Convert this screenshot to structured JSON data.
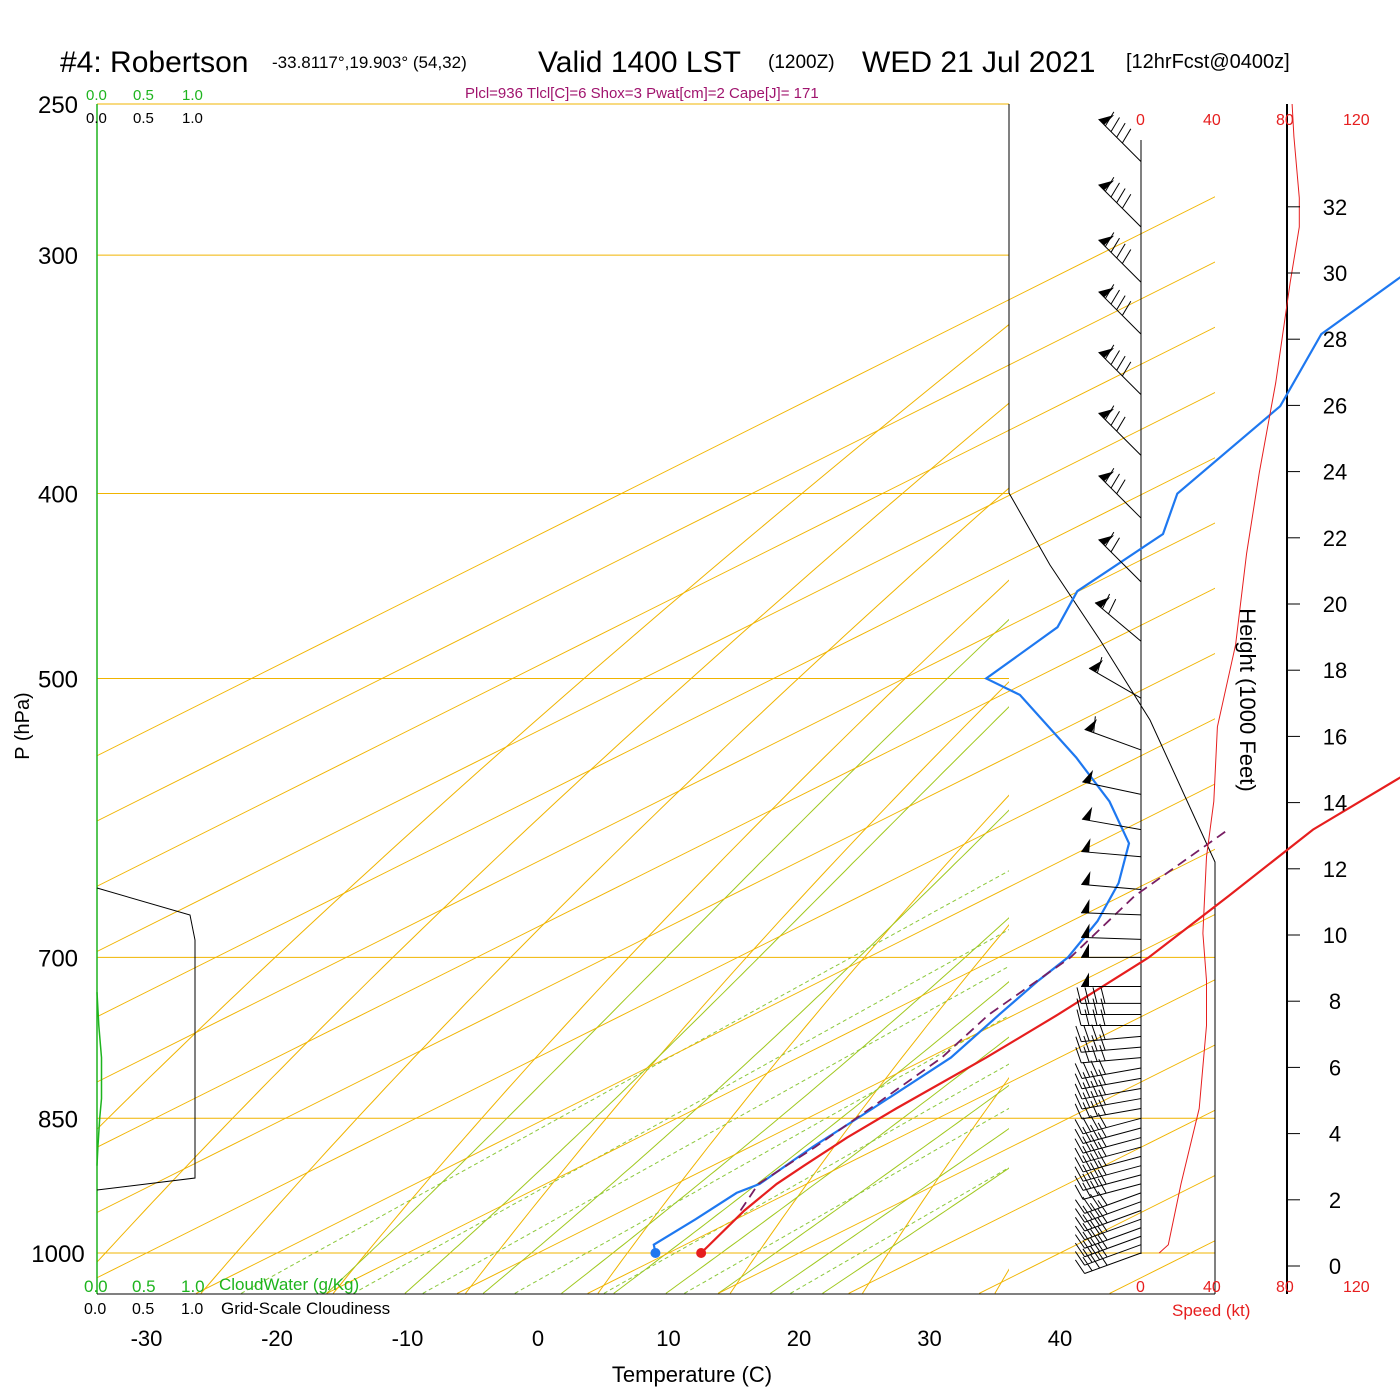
{
  "header": {
    "station": "#4: Robertson",
    "coords": "-33.8117°,19.903° (54,32)",
    "valid": "Valid 1400 LST",
    "zulu": "(1200Z)",
    "date": "WED 21 Jul 2021",
    "forecast": "[12hrFcst@0400z]",
    "indices": "Plcl=936 Tlcl[C]=6 Shox=3 Pwat[cm]=2 Cape[J]= 171"
  },
  "colors": {
    "isobar": "#f0b400",
    "mixing_ratio": "#8cc83c",
    "moist_adiabat": "#a0c81e",
    "temperature": "#e61e1e",
    "dewpoint": "#1e78f0",
    "parcel": "#781e64",
    "cloud_water": "#1eb41e",
    "wind_speed": "#e61e1e",
    "indices_text": "#a0146e"
  },
  "cloud_scale": {
    "green_ticks": [
      "0.0",
      "0.5",
      "1.0"
    ],
    "black_ticks": [
      "0.0",
      "0.5",
      "1.0"
    ],
    "cloud_water_label": "CloudWater (g/Kg)",
    "cloudiness_label": "Grid-Scale Cloudiness"
  },
  "speed_scale": {
    "ticks": [
      "0",
      "40",
      "80",
      "120"
    ],
    "label": "Speed (kt)"
  },
  "chart_data": {
    "type": "line",
    "title": "#4: Robertson -33.8117°,19.903° (54,32) Valid 1400 LST (1200Z) WED 21 Jul 2021 [12hrFcst@0400z]",
    "xlabel": "Temperature (C)",
    "ylabel": "P (hPa)",
    "y2label": "Height (1000 Feet)",
    "x_ticks": [
      -30,
      -20,
      -10,
      0,
      10,
      20,
      30,
      40
    ],
    "y_ticks": [
      250,
      300,
      400,
      500,
      700,
      850,
      1000
    ],
    "height_ticks": [
      0,
      2,
      4,
      6,
      8,
      10,
      12,
      14,
      16,
      18,
      20,
      22,
      24,
      26,
      28,
      30,
      32
    ],
    "skew_log_axes": true,
    "series": [
      {
        "key": "temperature",
        "points": [
          [
            12.5,
            1000
          ],
          [
            9.3,
            950
          ],
          [
            7.7,
            920
          ],
          [
            7.0,
            900
          ],
          [
            6.0,
            870
          ],
          [
            5.3,
            840
          ],
          [
            4.4,
            790
          ],
          [
            3.3,
            750
          ],
          [
            1.5,
            700
          ],
          [
            -1.8,
            650
          ],
          [
            -5.5,
            600
          ],
          [
            -7.3,
            550
          ],
          [
            -8.8,
            500
          ],
          [
            -11.6,
            450
          ],
          [
            -15.4,
            400
          ],
          [
            -20.5,
            350
          ],
          [
            -26.6,
            300
          ],
          [
            -33.9,
            275
          ],
          [
            -36.2,
            260
          ]
        ]
      },
      {
        "key": "dewpoint",
        "points": [
          [
            9.0,
            1000
          ],
          [
            7.6,
            990
          ],
          [
            6.9,
            960
          ],
          [
            6.0,
            930
          ],
          [
            6.4,
            920
          ],
          [
            4.8,
            880
          ],
          [
            3.5,
            840
          ],
          [
            1.7,
            790
          ],
          [
            -1.2,
            750
          ],
          [
            -3.4,
            720
          ],
          [
            -4.7,
            700
          ],
          [
            -8.0,
            670
          ],
          [
            -12.2,
            640
          ],
          [
            -17.5,
            610
          ],
          [
            -25.4,
            580
          ],
          [
            -34.7,
            550
          ],
          [
            -48.6,
            510
          ],
          [
            -53.7,
            500
          ],
          [
            -56.1,
            470
          ],
          [
            -60.1,
            450
          ],
          [
            -62.3,
            420
          ],
          [
            -67.4,
            400
          ],
          [
            -72.9,
            360
          ],
          [
            -80.8,
            330
          ],
          [
            -84.5,
            300
          ],
          [
            -87.5,
            280
          ],
          [
            -88.2,
            260
          ]
        ]
      },
      {
        "key": "parcel",
        "dashed": true,
        "points": [
          [
            9.0,
            950
          ],
          [
            6.3,
            920
          ],
          [
            5.0,
            880
          ],
          [
            3.3,
            840
          ],
          [
            1.0,
            790
          ],
          [
            -2.0,
            750
          ],
          [
            -4.5,
            700
          ],
          [
            -9.0,
            650
          ],
          [
            -12.0,
            600
          ]
        ]
      },
      {
        "key": "cloud_water",
        "points": [
          [
            0,
            730
          ],
          [
            0.02,
            760
          ],
          [
            0.05,
            790
          ],
          [
            0.05,
            830
          ],
          [
            0.03,
            850
          ],
          [
            0.01,
            880
          ],
          [
            0,
            900
          ]
        ]
      },
      {
        "key": "wind_speed",
        "points": [
          [
            10,
            1000
          ],
          [
            15,
            990
          ],
          [
            22,
            920
          ],
          [
            32,
            840
          ],
          [
            36,
            760
          ],
          [
            36,
            720
          ],
          [
            34,
            680
          ],
          [
            36,
            620
          ],
          [
            40,
            580
          ],
          [
            42,
            530
          ],
          [
            52,
            480
          ],
          [
            58,
            430
          ],
          [
            65,
            390
          ],
          [
            74,
            350
          ],
          [
            82,
            310
          ],
          [
            87,
            290
          ],
          [
            87,
            280
          ],
          [
            84,
            260
          ],
          [
            83,
            250
          ]
        ]
      }
    ],
    "winds": [
      {
        "p": 1000,
        "dir": 250,
        "kt": 40
      },
      {
        "p": 990,
        "dir": 250,
        "kt": 40
      },
      {
        "p": 980,
        "dir": 250,
        "kt": 40
      },
      {
        "p": 970,
        "dir": 250,
        "kt": 40
      },
      {
        "p": 960,
        "dir": 250,
        "kt": 40
      },
      {
        "p": 950,
        "dir": 250,
        "kt": 40
      },
      {
        "p": 940,
        "dir": 250,
        "kt": 40
      },
      {
        "p": 930,
        "dir": 250,
        "kt": 40
      },
      {
        "p": 920,
        "dir": 255,
        "kt": 40
      },
      {
        "p": 910,
        "dir": 255,
        "kt": 40
      },
      {
        "p": 900,
        "dir": 255,
        "kt": 40
      },
      {
        "p": 890,
        "dir": 255,
        "kt": 40
      },
      {
        "p": 880,
        "dir": 255,
        "kt": 40
      },
      {
        "p": 870,
        "dir": 255,
        "kt": 40
      },
      {
        "p": 860,
        "dir": 255,
        "kt": 40
      },
      {
        "p": 850,
        "dir": 255,
        "kt": 40
      },
      {
        "p": 840,
        "dir": 260,
        "kt": 40
      },
      {
        "p": 830,
        "dir": 260,
        "kt": 40
      },
      {
        "p": 820,
        "dir": 260,
        "kt": 40
      },
      {
        "p": 810,
        "dir": 260,
        "kt": 40
      },
      {
        "p": 800,
        "dir": 260,
        "kt": 40
      },
      {
        "p": 790,
        "dir": 265,
        "kt": 40
      },
      {
        "p": 780,
        "dir": 265,
        "kt": 40
      },
      {
        "p": 770,
        "dir": 265,
        "kt": 40
      },
      {
        "p": 760,
        "dir": 270,
        "kt": 40
      },
      {
        "p": 750,
        "dir": 270,
        "kt": 40
      },
      {
        "p": 740,
        "dir": 270,
        "kt": 40
      },
      {
        "p": 725,
        "dir": 270,
        "kt": 55
      },
      {
        "p": 700,
        "dir": 270,
        "kt": 55
      },
      {
        "p": 685,
        "dir": 272,
        "kt": 55
      },
      {
        "p": 665,
        "dir": 272,
        "kt": 55
      },
      {
        "p": 645,
        "dir": 275,
        "kt": 55
      },
      {
        "p": 620,
        "dir": 275,
        "kt": 55
      },
      {
        "p": 600,
        "dir": 280,
        "kt": 55
      },
      {
        "p": 575,
        "dir": 282,
        "kt": 55
      },
      {
        "p": 545,
        "dir": 290,
        "kt": 60
      },
      {
        "p": 512,
        "dir": 300,
        "kt": 60
      },
      {
        "p": 478,
        "dir": 310,
        "kt": 75
      },
      {
        "p": 445,
        "dir": 315,
        "kt": 75
      },
      {
        "p": 412,
        "dir": 315,
        "kt": 80
      },
      {
        "p": 382,
        "dir": 315,
        "kt": 80
      },
      {
        "p": 355,
        "dir": 315,
        "kt": 90
      },
      {
        "p": 330,
        "dir": 315,
        "kt": 90
      },
      {
        "p": 310,
        "dir": 315,
        "kt": 95
      },
      {
        "p": 290,
        "dir": 315,
        "kt": 95
      },
      {
        "p": 268,
        "dir": 315,
        "kt": 95
      }
    ]
  }
}
